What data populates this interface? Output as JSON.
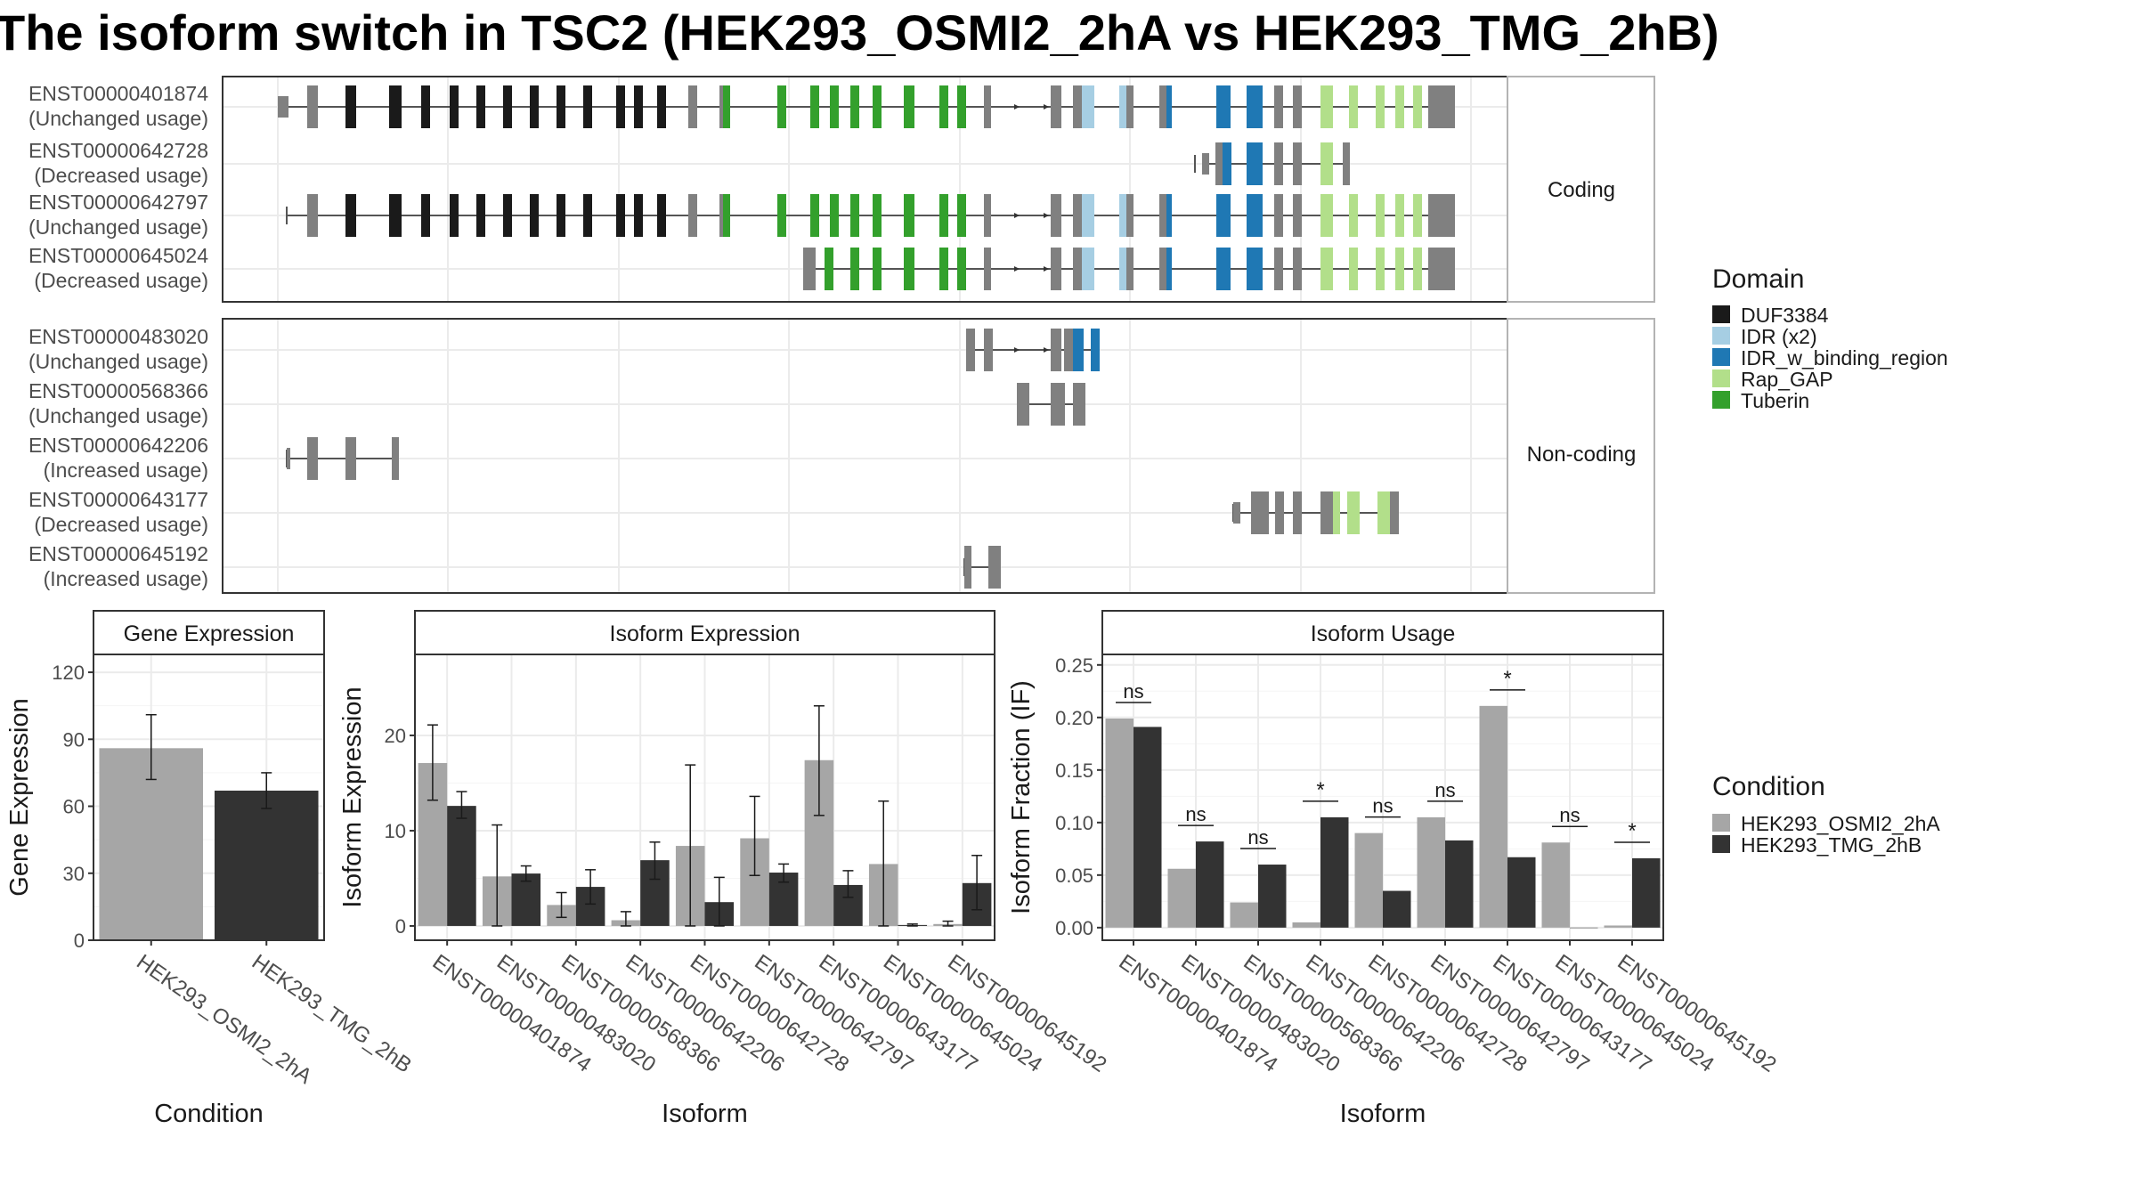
{
  "title": "The isoform switch in TSC2 (HEK293_OSMI2_2hA vs HEK293_TMG_2hB)",
  "colors": {
    "DUF3384": "#1a1a1a",
    "IDR (x2)": "#a6cee3",
    "IDR_w_binding_region": "#1f78b4",
    "Rap_GAP": "#b2df8a",
    "Tuberin": "#33a02c",
    "none": "#808080",
    "HEK293_OSMI2_2hA": "#a6a6a6",
    "HEK293_TMG_2hB": "#333333"
  },
  "transcripts": {
    "coding_strip": "Coding",
    "noncoding_strip": "Non-coding",
    "coding": [
      {
        "id": "ENST00000401874",
        "usage": "(Unchanged usage)"
      },
      {
        "id": "ENST00000642728",
        "usage": "(Decreased usage)"
      },
      {
        "id": "ENST00000642797",
        "usage": "(Unchanged usage)"
      },
      {
        "id": "ENST00000645024",
        "usage": "(Decreased usage)"
      }
    ],
    "noncoding": [
      {
        "id": "ENST00000483020",
        "usage": "(Unchanged usage)"
      },
      {
        "id": "ENST00000568366",
        "usage": "(Unchanged usage)"
      },
      {
        "id": "ENST00000642206",
        "usage": "(Increased usage)"
      },
      {
        "id": "ENST00000643177",
        "usage": "(Decreased usage)"
      },
      {
        "id": "ENST00000645192",
        "usage": "(Increased usage)"
      }
    ]
  },
  "legend_domain": {
    "title": "Domain",
    "items": [
      "DUF3384",
      "IDR (x2)",
      "IDR_w_binding_region",
      "Rap_GAP",
      "Tuberin"
    ]
  },
  "legend_condition": {
    "title": "Condition",
    "items": [
      "HEK293_OSMI2_2hA",
      "HEK293_TMG_2hB"
    ]
  },
  "chart_data": [
    {
      "type": "bar",
      "title": "Gene Expression",
      "xlabel": "Condition",
      "ylabel": "Gene Expression",
      "categories": [
        "HEK293_OSMI2_2hA",
        "HEK293_TMG_2hB"
      ],
      "values": [
        86,
        67
      ],
      "error_low": [
        72,
        59
      ],
      "error_high": [
        101,
        75
      ],
      "ylim": [
        0,
        128
      ],
      "yticks": [
        0,
        30,
        60,
        90,
        120
      ]
    },
    {
      "type": "bar",
      "title": "Isoform Expression",
      "xlabel": "Isoform",
      "ylabel": "Isoform Expression",
      "categories": [
        "ENST00000401874",
        "ENST00000483020",
        "ENST00000568366",
        "ENST00000642206",
        "ENST00000642728",
        "ENST00000642797",
        "ENST00000643177",
        "ENST00000645024",
        "ENST00000645192"
      ],
      "ylim": [
        -1.5,
        28.5
      ],
      "yticks": [
        0,
        10,
        20
      ],
      "series": [
        {
          "name": "HEK293_OSMI2_2hA",
          "values": [
            17.1,
            5.2,
            2.2,
            0.6,
            8.4,
            9.2,
            17.4,
            6.5,
            0.2
          ],
          "error_low": [
            13.2,
            0,
            0.9,
            0,
            0,
            5.3,
            11.6,
            0,
            0
          ],
          "error_high": [
            21.1,
            10.6,
            3.5,
            1.5,
            16.9,
            13.6,
            23.1,
            13.1,
            0.5
          ]
        },
        {
          "name": "HEK293_TMG_2hB",
          "values": [
            12.6,
            5.5,
            4.1,
            6.9,
            2.5,
            5.6,
            4.3,
            0.1,
            4.5
          ],
          "error_low": [
            11.3,
            4.7,
            2.3,
            4.9,
            0,
            4.6,
            3.0,
            0,
            1.7
          ],
          "error_high": [
            14.1,
            6.3,
            5.9,
            8.8,
            5.1,
            6.5,
            5.8,
            0.2,
            7.4
          ]
        }
      ]
    },
    {
      "type": "bar",
      "title": "Isoform Usage",
      "xlabel": "Isoform",
      "ylabel": "Isoform Fraction (IF)",
      "categories": [
        "ENST00000401874",
        "ENST00000483020",
        "ENST00000568366",
        "ENST00000642206",
        "ENST00000642728",
        "ENST00000642797",
        "ENST00000643177",
        "ENST00000645024",
        "ENST00000645192"
      ],
      "ylim": [
        -0.012,
        0.26
      ],
      "yticks": [
        0.0,
        0.05,
        0.1,
        0.15,
        0.2,
        0.25
      ],
      "ytick_labels": [
        "0.00",
        "0.05",
        "0.10",
        "0.15",
        "0.20",
        "0.25"
      ],
      "series": [
        {
          "name": "HEK293_OSMI2_2hA",
          "values": [
            0.199,
            0.056,
            0.024,
            0.005,
            0.09,
            0.105,
            0.211,
            0.081,
            0.002
          ]
        },
        {
          "name": "HEK293_TMG_2hB",
          "values": [
            0.191,
            0.082,
            0.06,
            0.105,
            0.035,
            0.083,
            0.067,
            0.0,
            0.066
          ]
        }
      ],
      "significance": [
        "ns",
        "ns",
        "ns",
        "*",
        "ns",
        "ns",
        "*",
        "ns",
        "*"
      ]
    }
  ]
}
